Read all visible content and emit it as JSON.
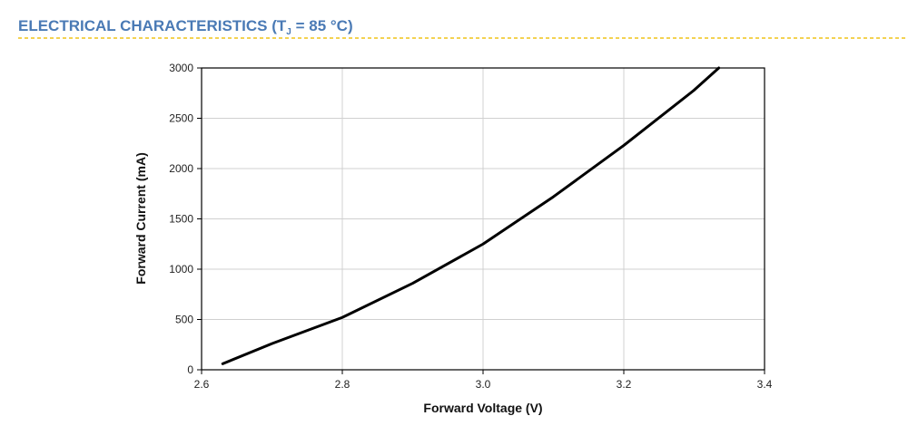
{
  "header": {
    "title": "ELECTRICAL CHARACTERISTICS (T",
    "title_subscript": "J",
    "title_end": " = 85 °C)"
  },
  "chart_data": {
    "type": "line",
    "xlabel": "Forward Voltage (V)",
    "ylabel": "Forward Current (mA)",
    "x": [
      2.63,
      2.7,
      2.8,
      2.9,
      3.0,
      3.1,
      3.2,
      3.3,
      3.335
    ],
    "series": [
      {
        "color": "#000000",
        "values": [
          60,
          260,
          520,
          860,
          1250,
          1720,
          2230,
          2780,
          3000
        ]
      }
    ],
    "xlim": [
      2.6,
      3.4
    ],
    "xticks": [
      2.6,
      2.8,
      {
        "value": 3,
        "label": "3.0"
      },
      3.2,
      3.4
    ],
    "ylim": [
      0,
      3000
    ],
    "yticks": [
      0,
      500,
      1000,
      1500,
      2000,
      2500,
      3000
    ],
    "grid": true
  }
}
